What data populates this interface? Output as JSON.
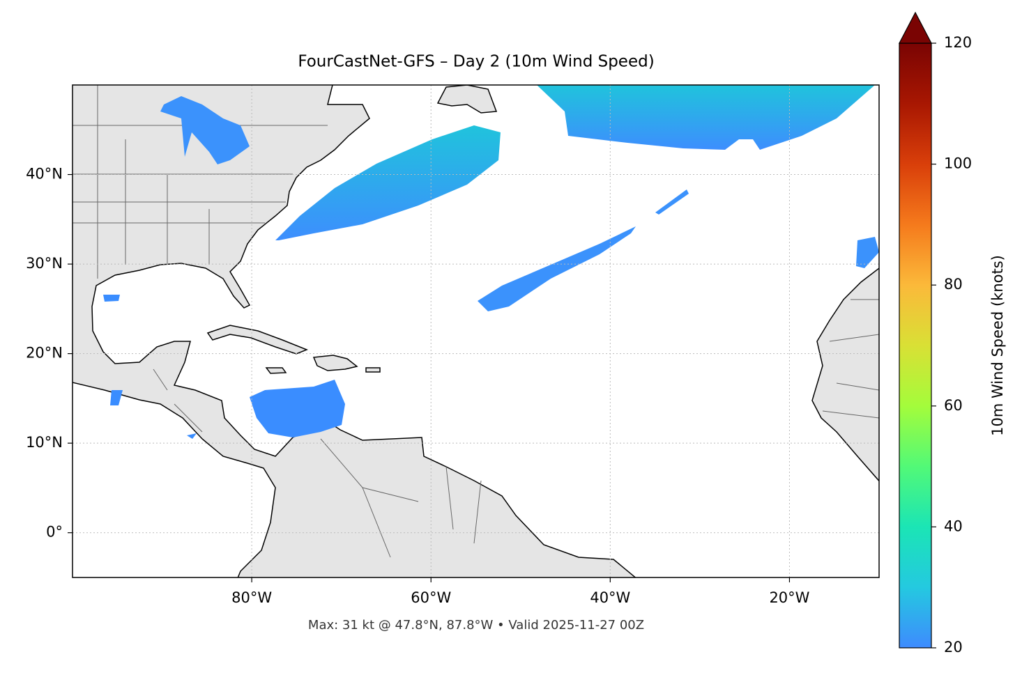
{
  "chart_data": {
    "type": "map",
    "title": "FourCastNet-GFS – Day 2 (10m Wind Speed)",
    "footer": "Max: 31 kt @ 47.8°N, 87.8°W • Valid 2025-11-27 00Z",
    "xlim": [
      -100,
      -10
    ],
    "ylim": [
      -5,
      50
    ],
    "xticks": [
      {
        "value": -80,
        "label": "80°W"
      },
      {
        "value": -60,
        "label": "60°W"
      },
      {
        "value": -40,
        "label": "40°W"
      },
      {
        "value": -20,
        "label": "20°W"
      }
    ],
    "yticks": [
      {
        "value": 0,
        "label": "0°"
      },
      {
        "value": 10,
        "label": "10°N"
      },
      {
        "value": 20,
        "label": "20°N"
      },
      {
        "value": 30,
        "label": "30°N"
      },
      {
        "value": 40,
        "label": "40°N"
      }
    ],
    "grid": true,
    "colorbar": {
      "label": "10m Wind Speed (knots)",
      "lim": [
        20,
        120
      ],
      "ticks": [
        20,
        40,
        60,
        80,
        100,
        120
      ],
      "colormap": [
        "#3e8bfe",
        "#24c9e0",
        "#1be5b5",
        "#52f977",
        "#a4fc3b",
        "#d9e035",
        "#fbb93a",
        "#f57a1c",
        "#d93f0a",
        "#a81702",
        "#7a0403"
      ],
      "extend": "max"
    }
  }
}
